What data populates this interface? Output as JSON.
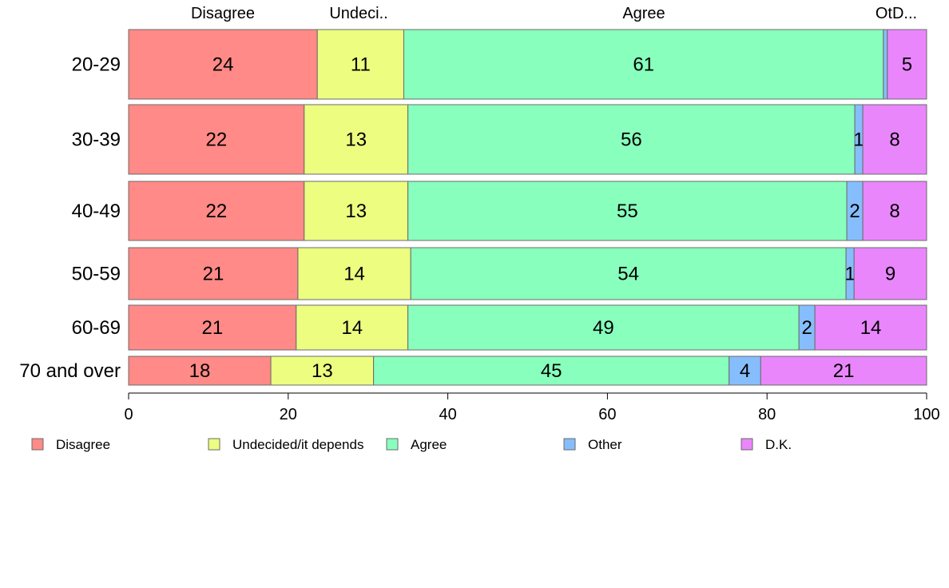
{
  "chart_data": {
    "type": "bar",
    "orientation": "horizontal",
    "stacked": true,
    "categories": [
      "20-29",
      "30-39",
      "40-49",
      "50-59",
      "60-69",
      "70 and over"
    ],
    "series": [
      {
        "name": "Disagree",
        "color": "#ff8a87",
        "values": [
          24,
          22,
          22,
          21,
          21,
          18
        ]
      },
      {
        "name": "Undecided/it depends",
        "color": "#ecfd80",
        "values": [
          11,
          13,
          13,
          14,
          14,
          13
        ]
      },
      {
        "name": "Agree",
        "color": "#88ffbd",
        "values": [
          61,
          56,
          55,
          54,
          49,
          45
        ]
      },
      {
        "name": "Other",
        "color": "#86bdfc",
        "values": [
          0.5,
          1,
          2,
          1,
          2,
          4
        ]
      },
      {
        "name": "D.K.",
        "color": "#e986fc",
        "values": [
          5,
          8,
          8,
          9,
          14,
          21
        ]
      }
    ],
    "data_labels": [
      [
        "24",
        "11",
        "61",
        "",
        "5"
      ],
      [
        "22",
        "13",
        "56",
        "1",
        "8"
      ],
      [
        "22",
        "13",
        "55",
        "2",
        "8"
      ],
      [
        "21",
        "14",
        "54",
        "1",
        "9"
      ],
      [
        "21",
        "14",
        "49",
        "2",
        "14"
      ],
      [
        "18",
        "13",
        "45",
        "4",
        "21"
      ]
    ],
    "top_labels": [
      "Disagree",
      "Undeci..",
      "Agree",
      "OtD..."
    ],
    "xlim": [
      0,
      100
    ],
    "x_ticks": [
      "0",
      "20",
      "40",
      "60",
      "80",
      "100"
    ],
    "legend_position": "bottom",
    "grid": false
  }
}
